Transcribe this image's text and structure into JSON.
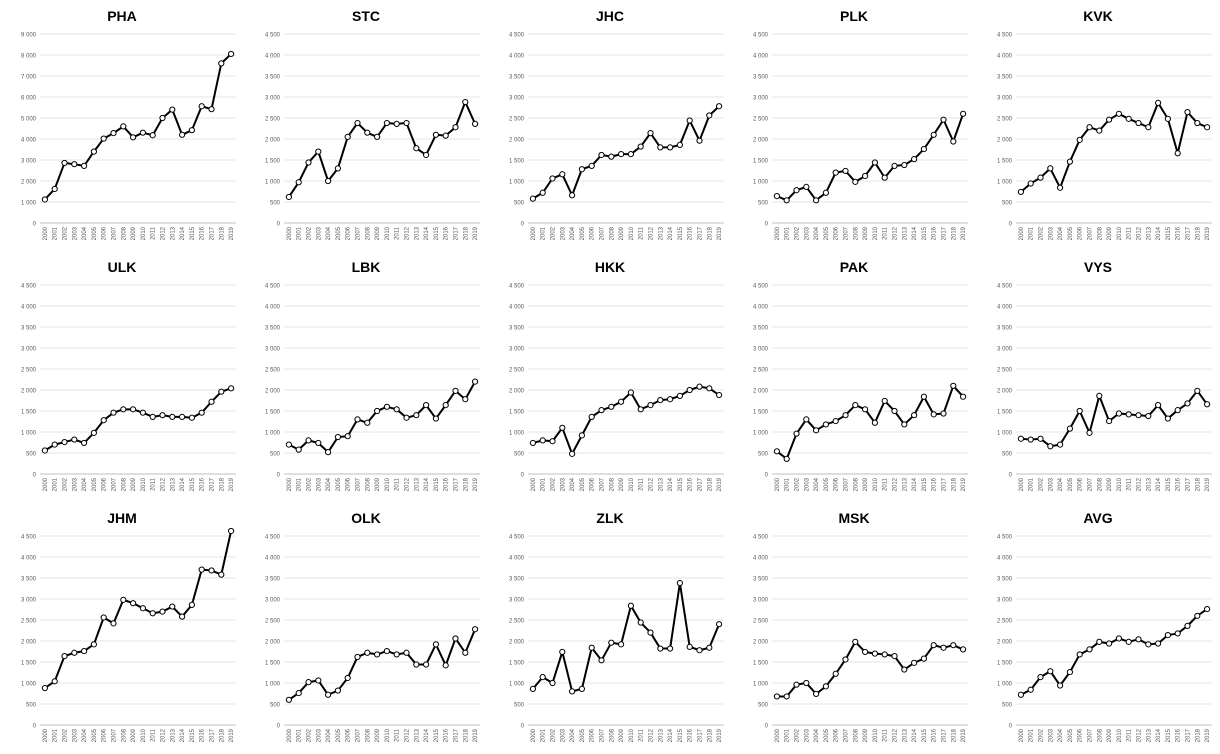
{
  "chart_data": [
    {
      "type": "line",
      "title": "PHA",
      "x": [
        "2000",
        "2001",
        "2002",
        "2003",
        "2004",
        "2005",
        "2006",
        "2007",
        "2008",
        "2009",
        "2010",
        "2011",
        "2012",
        "2013",
        "2014",
        "2015",
        "2016",
        "2017",
        "2018",
        "2019"
      ],
      "ylim": [
        0,
        9000
      ],
      "yticks": [
        0,
        1000,
        2000,
        3000,
        4000,
        5000,
        6000,
        7000,
        8000,
        9000
      ],
      "yticklabels": [
        "0",
        "1 000",
        "2 000",
        "3 000",
        "4 000",
        "5 000",
        "6 000",
        "7 000",
        "8 000",
        "9 000"
      ],
      "values": [
        1120,
        1620,
        2860,
        2800,
        2720,
        3400,
        4020,
        4280,
        4600,
        4080,
        4300,
        4180,
        5000,
        5400,
        4200,
        4420,
        5560,
        5420,
        7600,
        8050
      ]
    },
    {
      "type": "line",
      "title": "STC",
      "x": [
        "2000",
        "2001",
        "2002",
        "2003",
        "2004",
        "2005",
        "2006",
        "2007",
        "2008",
        "2009",
        "2010",
        "2011",
        "2012",
        "2013",
        "2014",
        "2015",
        "2016",
        "2017",
        "2018",
        "2019"
      ],
      "ylim": [
        0,
        4500
      ],
      "yticks": [
        0,
        500,
        1000,
        1500,
        2000,
        2500,
        3000,
        3500,
        4000,
        4500
      ],
      "yticklabels": [
        "0",
        "500",
        "1 000",
        "1 500",
        "2 000",
        "2 500",
        "3 000",
        "3 500",
        "4 000",
        "4 500"
      ],
      "values": [
        620,
        970,
        1440,
        1700,
        1000,
        1300,
        2050,
        2380,
        2150,
        2050,
        2380,
        2360,
        2380,
        1780,
        1620,
        2100,
        2080,
        2280,
        2880,
        2360
      ]
    },
    {
      "type": "line",
      "title": "JHC",
      "x": [
        "2000",
        "2001",
        "2002",
        "2003",
        "2004",
        "2005",
        "2006",
        "2007",
        "2008",
        "2009",
        "2010",
        "2011",
        "2012",
        "2013",
        "2014",
        "2015",
        "2016",
        "2017",
        "2018",
        "2019"
      ],
      "ylim": [
        0,
        4500
      ],
      "yticks": [
        0,
        500,
        1000,
        1500,
        2000,
        2500,
        3000,
        3500,
        4000,
        4500
      ],
      "yticklabels": [
        "0",
        "500",
        "1 000",
        "1 500",
        "2 000",
        "2 500",
        "3 000",
        "3 500",
        "4 000",
        "4 500"
      ],
      "values": [
        580,
        720,
        1060,
        1160,
        660,
        1280,
        1360,
        1620,
        1580,
        1640,
        1640,
        1820,
        2140,
        1800,
        1800,
        1860,
        2440,
        1960,
        2560,
        2780
      ]
    },
    {
      "type": "line",
      "title": "PLK",
      "x": [
        "2000",
        "2001",
        "2002",
        "2003",
        "2004",
        "2005",
        "2006",
        "2007",
        "2008",
        "2009",
        "2010",
        "2011",
        "2012",
        "2013",
        "2014",
        "2015",
        "2016",
        "2017",
        "2018",
        "2019"
      ],
      "ylim": [
        0,
        4500
      ],
      "yticks": [
        0,
        500,
        1000,
        1500,
        2000,
        2500,
        3000,
        3500,
        4000,
        4500
      ],
      "yticklabels": [
        "0",
        "500",
        "1 000",
        "1 500",
        "2 000",
        "2 500",
        "3 000",
        "3 500",
        "4 000",
        "4 500"
      ],
      "values": [
        640,
        540,
        780,
        860,
        540,
        720,
        1200,
        1240,
        980,
        1120,
        1440,
        1080,
        1360,
        1380,
        1520,
        1760,
        2100,
        2460,
        1940,
        2600
      ]
    },
    {
      "type": "line",
      "title": "KVK",
      "x": [
        "2000",
        "2001",
        "2002",
        "2003",
        "2004",
        "2005",
        "2006",
        "2007",
        "2008",
        "2009",
        "2010",
        "2011",
        "2012",
        "2013",
        "2014",
        "2015",
        "2016",
        "2017",
        "2018",
        "2019"
      ],
      "ylim": [
        0,
        4500
      ],
      "yticks": [
        0,
        500,
        1000,
        1500,
        2000,
        2500,
        3000,
        3500,
        4000,
        4500
      ],
      "yticklabels": [
        "0",
        "500",
        "1 000",
        "1 500",
        "2 000",
        "2 500",
        "3 000",
        "3 500",
        "4 000",
        "4 500"
      ],
      "values": [
        740,
        940,
        1080,
        1300,
        840,
        1460,
        1980,
        2280,
        2200,
        2460,
        2600,
        2480,
        2380,
        2280,
        2860,
        2480,
        1660,
        2640,
        2380,
        2280
      ]
    },
    {
      "type": "line",
      "title": "ULK",
      "x": [
        "2000",
        "2001",
        "2002",
        "2003",
        "2004",
        "2005",
        "2006",
        "2007",
        "2008",
        "2009",
        "2010",
        "2011",
        "2012",
        "2013",
        "2014",
        "2015",
        "2016",
        "2017",
        "2018",
        "2019"
      ],
      "ylim": [
        0,
        4500
      ],
      "yticks": [
        0,
        500,
        1000,
        1500,
        2000,
        2500,
        3000,
        3500,
        4000,
        4500
      ],
      "yticklabels": [
        "0",
        "500",
        "1 000",
        "1 500",
        "2 000",
        "2 500",
        "3 000",
        "3 500",
        "4 000",
        "4 500"
      ],
      "values": [
        560,
        700,
        760,
        820,
        740,
        980,
        1280,
        1460,
        1540,
        1540,
        1460,
        1360,
        1400,
        1360,
        1360,
        1340,
        1460,
        1720,
        1960,
        2040
      ]
    },
    {
      "type": "line",
      "title": "LBK",
      "x": [
        "2000",
        "2001",
        "2002",
        "2003",
        "2004",
        "2005",
        "2006",
        "2007",
        "2008",
        "2009",
        "2010",
        "2011",
        "2012",
        "2013",
        "2014",
        "2015",
        "2016",
        "2017",
        "2018",
        "2019"
      ],
      "ylim": [
        0,
        4500
      ],
      "yticks": [
        0,
        500,
        1000,
        1500,
        2000,
        2500,
        3000,
        3500,
        4000,
        4500
      ],
      "yticklabels": [
        "0",
        "500",
        "1 000",
        "1 500",
        "2 000",
        "2 500",
        "3 000",
        "3 500",
        "4 000",
        "4 500"
      ],
      "values": [
        700,
        580,
        800,
        740,
        520,
        880,
        900,
        1300,
        1220,
        1500,
        1600,
        1540,
        1340,
        1400,
        1640,
        1320,
        1640,
        1980,
        1780,
        2200
      ]
    },
    {
      "type": "line",
      "title": "HKK",
      "x": [
        "2000",
        "2001",
        "2002",
        "2003",
        "2004",
        "2005",
        "2006",
        "2007",
        "2008",
        "2009",
        "2010",
        "2011",
        "2012",
        "2013",
        "2014",
        "2015",
        "2016",
        "2017",
        "2018",
        "2019"
      ],
      "ylim": [
        0,
        4500
      ],
      "yticks": [
        0,
        500,
        1000,
        1500,
        2000,
        2500,
        3000,
        3500,
        4000,
        4500
      ],
      "yticklabels": [
        "0",
        "500",
        "1 000",
        "1 500",
        "2 000",
        "2 500",
        "3 000",
        "3 500",
        "4 000",
        "4 500"
      ],
      "values": [
        740,
        800,
        780,
        1100,
        480,
        920,
        1360,
        1520,
        1600,
        1720,
        1940,
        1540,
        1640,
        1760,
        1780,
        1860,
        2000,
        2080,
        2040,
        1880
      ]
    },
    {
      "type": "line",
      "title": "PAK",
      "x": [
        "2000",
        "2001",
        "2002",
        "2003",
        "2004",
        "2005",
        "2006",
        "2007",
        "2008",
        "2009",
        "2010",
        "2011",
        "2012",
        "2013",
        "2014",
        "2015",
        "2016",
        "2017",
        "2018",
        "2019"
      ],
      "ylim": [
        0,
        4500
      ],
      "yticks": [
        0,
        500,
        1000,
        1500,
        2000,
        2500,
        3000,
        3500,
        4000,
        4500
      ],
      "yticklabels": [
        "0",
        "500",
        "1 000",
        "1 500",
        "2 000",
        "2 500",
        "3 000",
        "3 500",
        "4 000",
        "4 500"
      ],
      "values": [
        540,
        360,
        960,
        1300,
        1040,
        1180,
        1260,
        1400,
        1640,
        1540,
        1220,
        1740,
        1500,
        1180,
        1400,
        1840,
        1420,
        1440,
        2100,
        1840
      ]
    },
    {
      "type": "line",
      "title": "VYS",
      "x": [
        "2000",
        "2001",
        "2002",
        "2003",
        "2004",
        "2005",
        "2006",
        "2007",
        "2008",
        "2009",
        "2010",
        "2011",
        "2012",
        "2013",
        "2014",
        "2015",
        "2016",
        "2017",
        "2018",
        "2019"
      ],
      "ylim": [
        0,
        4500
      ],
      "yticks": [
        0,
        500,
        1000,
        1500,
        2000,
        2500,
        3000,
        3500,
        4000,
        4500
      ],
      "yticklabels": [
        "0",
        "500",
        "1 000",
        "1 500",
        "2 000",
        "2 500",
        "3 000",
        "3 500",
        "4 000",
        "4 500"
      ],
      "values": [
        840,
        820,
        840,
        660,
        700,
        1080,
        1500,
        980,
        1860,
        1260,
        1440,
        1420,
        1400,
        1380,
        1640,
        1320,
        1520,
        1680,
        1980,
        1660
      ]
    },
    {
      "type": "line",
      "title": "JHM",
      "x": [
        "2000",
        "2001",
        "2002",
        "2003",
        "2004",
        "2005",
        "2006",
        "2007",
        "2008",
        "2009",
        "2010",
        "2011",
        "2012",
        "2013",
        "2014",
        "2015",
        "2016",
        "2017",
        "2018",
        "2019"
      ],
      "ylim": [
        0,
        4500
      ],
      "yticks": [
        0,
        500,
        1000,
        1500,
        2000,
        2500,
        3000,
        3500,
        4000,
        4500
      ],
      "yticklabels": [
        "0",
        "500",
        "1 000",
        "1 500",
        "2 000",
        "2 500",
        "3 000",
        "3 500",
        "4 000",
        "4 500"
      ],
      "values": [
        880,
        1040,
        1640,
        1720,
        1760,
        1920,
        2560,
        2420,
        2980,
        2900,
        2780,
        2660,
        2700,
        2820,
        2580,
        2860,
        3700,
        3680,
        3580,
        4620
      ]
    },
    {
      "type": "line",
      "title": "OLK",
      "x": [
        "2000",
        "2001",
        "2002",
        "2003",
        "2004",
        "2005",
        "2006",
        "2007",
        "2008",
        "2009",
        "2010",
        "2011",
        "2012",
        "2013",
        "2014",
        "2015",
        "2016",
        "2017",
        "2018",
        "2019"
      ],
      "ylim": [
        0,
        4500
      ],
      "yticks": [
        0,
        500,
        1000,
        1500,
        2000,
        2500,
        3000,
        3500,
        4000,
        4500
      ],
      "yticklabels": [
        "0",
        "500",
        "1 000",
        "1 500",
        "2 000",
        "2 500",
        "3 000",
        "3 500",
        "4 000",
        "4 500"
      ],
      "values": [
        600,
        760,
        1020,
        1060,
        720,
        820,
        1120,
        1620,
        1720,
        1680,
        1760,
        1680,
        1720,
        1440,
        1440,
        1920,
        1420,
        2060,
        1720,
        2280
      ]
    },
    {
      "type": "line",
      "title": "ZLK",
      "x": [
        "2000",
        "2001",
        "2002",
        "2003",
        "2004",
        "2005",
        "2006",
        "2007",
        "2008",
        "2009",
        "2010",
        "2011",
        "2012",
        "2013",
        "2014",
        "2015",
        "2016",
        "2017",
        "2018",
        "2019"
      ],
      "ylim": [
        0,
        4500
      ],
      "yticks": [
        0,
        500,
        1000,
        1500,
        2000,
        2500,
        3000,
        3500,
        4000,
        4500
      ],
      "yticklabels": [
        "0",
        "500",
        "1 000",
        "1 500",
        "2 000",
        "2 500",
        "3 000",
        "3 500",
        "4 000",
        "4 500"
      ],
      "values": [
        860,
        1140,
        1000,
        1740,
        800,
        860,
        1840,
        1540,
        1960,
        1920,
        2840,
        2440,
        2200,
        1820,
        1820,
        3380,
        1860,
        1780,
        1840,
        2400
      ]
    },
    {
      "type": "line",
      "title": "MSK",
      "x": [
        "2000",
        "2001",
        "2002",
        "2003",
        "2004",
        "2005",
        "2006",
        "2007",
        "2008",
        "2009",
        "2010",
        "2011",
        "2012",
        "2013",
        "2014",
        "2015",
        "2016",
        "2017",
        "2018",
        "2019"
      ],
      "ylim": [
        0,
        4500
      ],
      "yticks": [
        0,
        500,
        1000,
        1500,
        2000,
        2500,
        3000,
        3500,
        4000,
        4500
      ],
      "yticklabels": [
        "0",
        "500",
        "1 000",
        "1 500",
        "2 000",
        "2 500",
        "3 000",
        "3 500",
        "4 000",
        "4 500"
      ],
      "values": [
        680,
        680,
        960,
        1000,
        740,
        920,
        1220,
        1560,
        1980,
        1740,
        1700,
        1680,
        1640,
        1320,
        1480,
        1580,
        1900,
        1840,
        1900,
        1800
      ]
    },
    {
      "type": "line",
      "title": "AVG",
      "x": [
        "2000",
        "2001",
        "2002",
        "2003",
        "2004",
        "2005",
        "2006",
        "2007",
        "2008",
        "2009",
        "2010",
        "2011",
        "2012",
        "2013",
        "2014",
        "2015",
        "2016",
        "2017",
        "2018",
        "2019"
      ],
      "ylim": [
        0,
        4500
      ],
      "yticks": [
        0,
        500,
        1000,
        1500,
        2000,
        2500,
        3000,
        3500,
        4000,
        4500
      ],
      "yticklabels": [
        "0",
        "500",
        "1 000",
        "1 500",
        "2 000",
        "2 500",
        "3 000",
        "3 500",
        "4 000",
        "4 500"
      ],
      "values": [
        720,
        840,
        1140,
        1280,
        940,
        1260,
        1680,
        1800,
        1980,
        1940,
        2060,
        1980,
        2040,
        1920,
        1940,
        2140,
        2180,
        2360,
        2600,
        2760
      ]
    }
  ]
}
